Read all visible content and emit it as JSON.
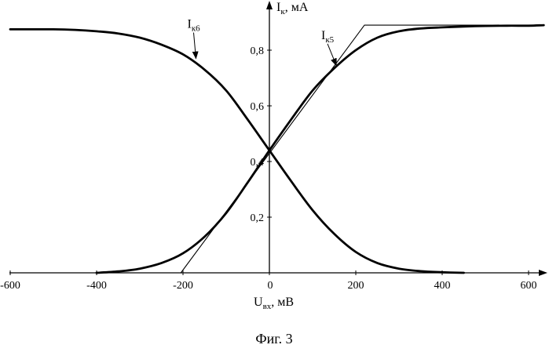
{
  "chart_data": {
    "type": "line",
    "xlabel": {
      "main": "U",
      "sub": "вх",
      "rest": ", мВ"
    },
    "ylabel": {
      "main": "I",
      "sub": "к",
      "rest": ", мА"
    },
    "xlim": [
      -600,
      640
    ],
    "ylim": [
      0,
      0.93
    ],
    "xticks": [
      {
        "value": -600,
        "label": "-600"
      },
      {
        "value": -400,
        "label": "-400"
      },
      {
        "value": -200,
        "label": "-200"
      },
      {
        "value": 0,
        "label": "0"
      },
      {
        "value": 200,
        "label": "200"
      },
      {
        "value": 400,
        "label": "400"
      },
      {
        "value": 600,
        "label": "600"
      }
    ],
    "yticks": [
      {
        "value": 0.2,
        "label": "0,2"
      },
      {
        "value": 0.4,
        "label": "0,4"
      },
      {
        "value": 0.6,
        "label": "0,6"
      },
      {
        "value": 0.8,
        "label": "0,8"
      }
    ],
    "grid": false,
    "series": [
      {
        "name": "Iк6",
        "label_main": "I",
        "label_sub": "к6",
        "style": "thick",
        "points": [
          [
            -600,
            0.875
          ],
          [
            -500,
            0.875
          ],
          [
            -450,
            0.873
          ],
          [
            -400,
            0.868
          ],
          [
            -350,
            0.86
          ],
          [
            -300,
            0.845
          ],
          [
            -250,
            0.82
          ],
          [
            -200,
            0.785
          ],
          [
            -150,
            0.73
          ],
          [
            -100,
            0.655
          ],
          [
            -50,
            0.55
          ],
          [
            0,
            0.44
          ],
          [
            50,
            0.33
          ],
          [
            100,
            0.225
          ],
          [
            150,
            0.14
          ],
          [
            200,
            0.075
          ],
          [
            250,
            0.035
          ],
          [
            300,
            0.015
          ],
          [
            350,
            0.006
          ],
          [
            400,
            0.002
          ],
          [
            450,
            0.0
          ]
        ]
      },
      {
        "name": "Iк5",
        "label_main": "I",
        "label_sub": "к5",
        "style": "thick",
        "points": [
          [
            -400,
            0.0
          ],
          [
            -350,
            0.005
          ],
          [
            -300,
            0.015
          ],
          [
            -250,
            0.035
          ],
          [
            -200,
            0.07
          ],
          [
            -150,
            0.13
          ],
          [
            -100,
            0.215
          ],
          [
            -50,
            0.325
          ],
          [
            0,
            0.44
          ],
          [
            50,
            0.55
          ],
          [
            100,
            0.655
          ],
          [
            150,
            0.735
          ],
          [
            200,
            0.8
          ],
          [
            250,
            0.845
          ],
          [
            300,
            0.868
          ],
          [
            350,
            0.878
          ],
          [
            400,
            0.882
          ],
          [
            450,
            0.885
          ],
          [
            500,
            0.887
          ],
          [
            550,
            0.888
          ],
          [
            600,
            0.888
          ],
          [
            635,
            0.89
          ]
        ]
      },
      {
        "name": "approximation",
        "style": "thin",
        "points": [
          [
            -205,
            0.0
          ],
          [
            220,
            0.89
          ],
          [
            635,
            0.89
          ]
        ]
      }
    ],
    "annotations": [
      {
        "series": "Iк6",
        "label_at": [
          -190,
          0.88
        ],
        "arrow_to": [
          -170,
          0.77
        ]
      },
      {
        "series": "Iк5",
        "label_at": [
          120,
          0.84
        ],
        "arrow_to": [
          155,
          0.745
        ]
      }
    ]
  },
  "caption": "Фиг. 3"
}
